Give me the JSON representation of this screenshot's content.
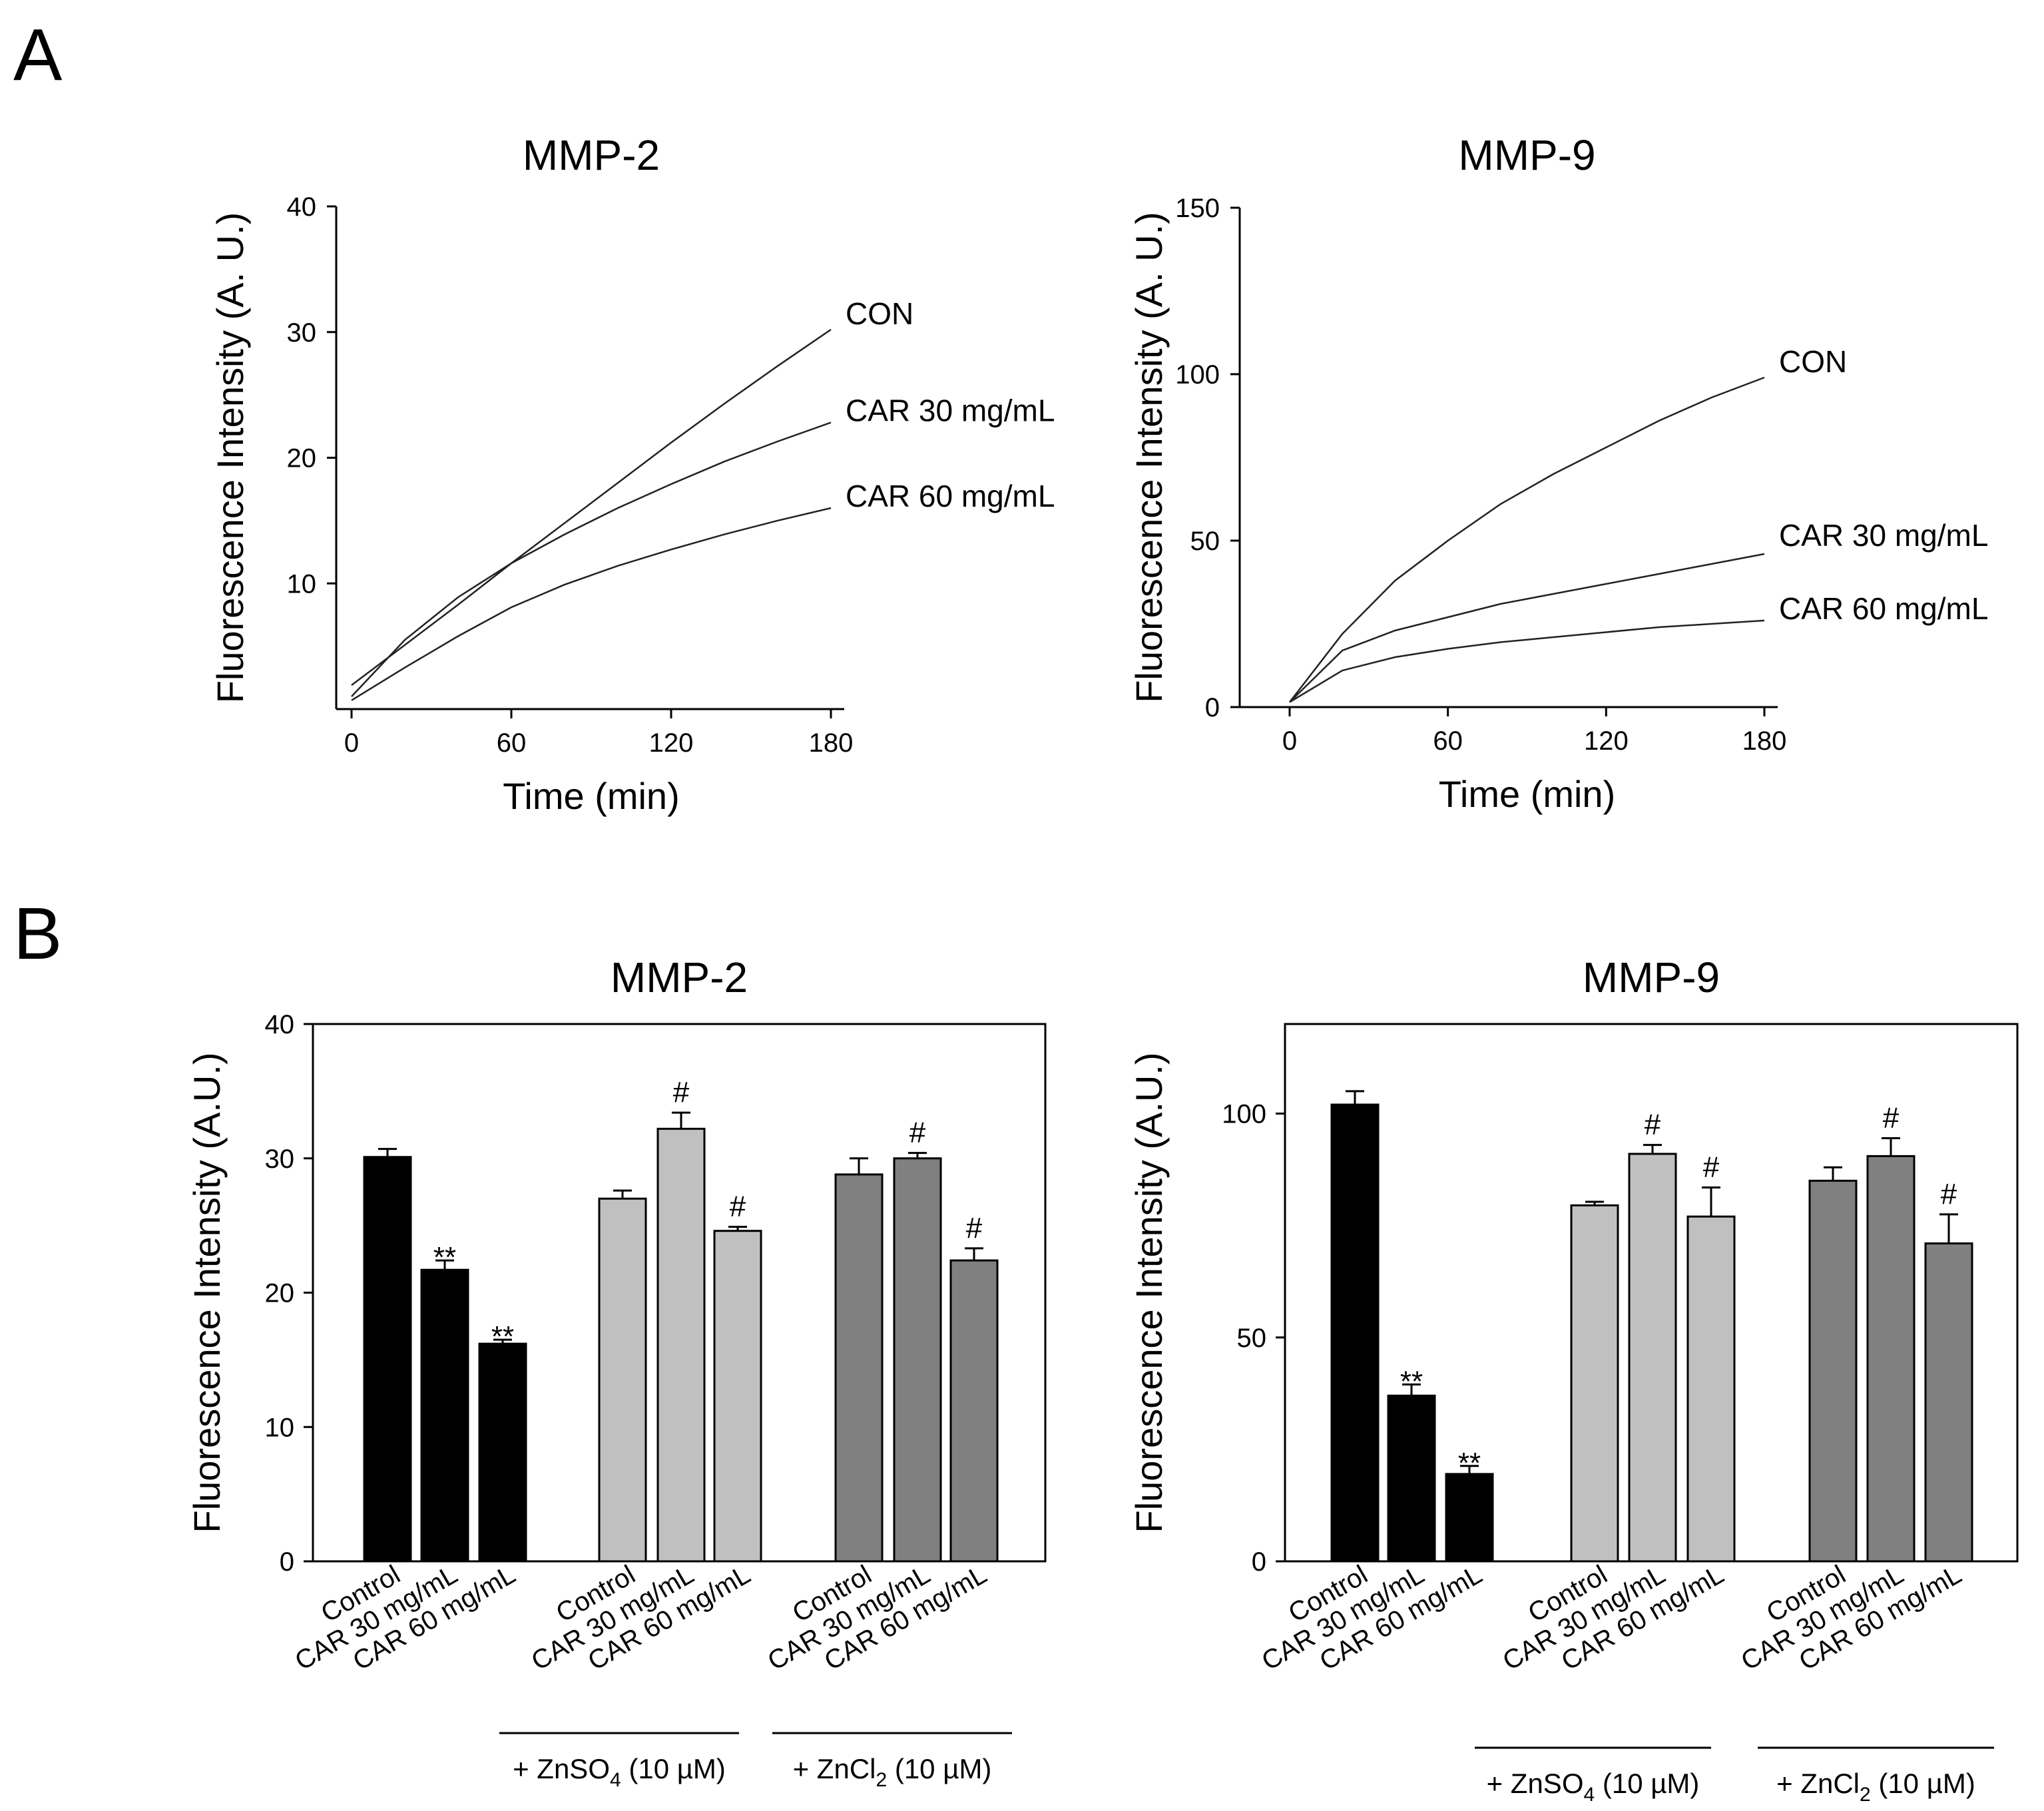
{
  "panel_labels": [
    "A",
    "B"
  ],
  "chart_data": [
    {
      "type": "line",
      "title": "MMP-2",
      "xlabel": "Time (min)",
      "ylabel": "Fluorescence Intensity (A. U.)",
      "xlim": [
        0,
        180
      ],
      "ylim": [
        0,
        40
      ],
      "xticks": [
        "0",
        "60",
        "120",
        "180"
      ],
      "yticks": [
        "10",
        "20",
        "30",
        "40"
      ],
      "x": [
        0,
        20,
        40,
        60,
        80,
        100,
        120,
        140,
        160,
        180
      ],
      "series": [
        {
          "name": "CON",
          "values": [
            1.9,
            5.1,
            8.3,
            11.6,
            14.8,
            18.0,
            21.2,
            24.3,
            27.3,
            30.2
          ]
        },
        {
          "name": "CAR 30 mg/mL",
          "values": [
            1.0,
            5.5,
            8.9,
            11.6,
            13.9,
            16.0,
            17.9,
            19.7,
            21.3,
            22.8
          ]
        },
        {
          "name": "CAR 60 mg/mL",
          "values": [
            0.7,
            3.3,
            5.8,
            8.1,
            9.9,
            11.4,
            12.7,
            13.9,
            15.0,
            16.0
          ]
        }
      ]
    },
    {
      "type": "line",
      "title": "MMP-9",
      "xlabel": "Time (min)",
      "ylabel": "Fluorescence Intensity (A. U.)",
      "xlim": [
        0,
        180
      ],
      "ylim": [
        0,
        150
      ],
      "xticks": [
        "0",
        "60",
        "120",
        "180"
      ],
      "yticks": [
        "0",
        "50",
        "100",
        "150"
      ],
      "x": [
        0,
        20,
        40,
        60,
        80,
        100,
        120,
        140,
        160,
        180
      ],
      "series": [
        {
          "name": "CON",
          "values": [
            1.5,
            22,
            38,
            50,
            61,
            70,
            78,
            86,
            93,
            99
          ]
        },
        {
          "name": "CAR 30 mg/mL",
          "values": [
            1.5,
            17,
            23,
            27,
            31,
            34,
            37,
            40,
            43,
            46
          ]
        },
        {
          "name": "CAR 60 mg/mL",
          "values": [
            1.5,
            11,
            15,
            17.5,
            19.5,
            21,
            22.5,
            24,
            25,
            26
          ]
        }
      ]
    },
    {
      "type": "bar",
      "title": "MMP-2",
      "ylabel": "Fluorescence Intensity (A.U.)",
      "ylim": [
        0,
        40
      ],
      "yticks": [
        "0",
        "10",
        "20",
        "30",
        "40"
      ],
      "categories": [
        "Control",
        "CAR 30 mg/mL",
        "CAR 60 mg/mL",
        "Control",
        "CAR 30 mg/mL",
        "CAR 60 mg/mL",
        "Control",
        "CAR 30 mg/mL",
        "CAR 60 mg/mL"
      ],
      "values": [
        30.1,
        21.7,
        16.2,
        27.0,
        32.2,
        24.6,
        28.8,
        30.0,
        22.4
      ],
      "errors": [
        0.6,
        0.7,
        0.3,
        0.6,
        1.2,
        0.3,
        1.2,
        0.4,
        0.9
      ],
      "colors": [
        "#000000",
        "#000000",
        "#000000",
        "#c0c0c0",
        "#c0c0c0",
        "#c0c0c0",
        "#808080",
        "#808080",
        "#808080"
      ],
      "marks": [
        "",
        "**",
        "**",
        "",
        "#",
        "#",
        "",
        "#",
        "#"
      ],
      "groups": [
        {
          "label_pre": "+ ZnSO",
          "sub": "4",
          "label_post": " (10 µM)"
        },
        {
          "label_pre": "+ ZnCl",
          "sub": "2",
          "label_post": " (10 µM)"
        }
      ]
    },
    {
      "type": "bar",
      "title": "MMP-9",
      "ylabel": "Fluorescence Intensity (A.U.)",
      "ylim": [
        0,
        120
      ],
      "yticks": [
        "0",
        "50",
        "100"
      ],
      "categories": [
        "Control",
        "CAR 30 mg/mL",
        "CAR 60 mg/mL",
        "Control",
        "CAR 30 mg/mL",
        "CAR 60 mg/mL",
        "Control",
        "CAR 30 mg/mL",
        "CAR 60 mg/mL"
      ],
      "values": [
        102,
        37,
        19.5,
        79.5,
        91,
        77,
        85,
        90.5,
        71
      ],
      "errors": [
        3,
        2.5,
        1.8,
        0.8,
        2,
        6.5,
        3,
        4,
        6.5
      ],
      "colors": [
        "#000000",
        "#000000",
        "#000000",
        "#c0c0c0",
        "#c0c0c0",
        "#c0c0c0",
        "#808080",
        "#808080",
        "#808080"
      ],
      "marks": [
        "",
        "**",
        "**",
        "",
        "#",
        "#",
        "",
        "#",
        "#"
      ],
      "groups": [
        {
          "label_pre": "+ ZnSO",
          "sub": "4",
          "label_post": " (10 µM)"
        },
        {
          "label_pre": "+ ZnCl",
          "sub": "2",
          "label_post": " (10 µM)"
        }
      ]
    }
  ]
}
